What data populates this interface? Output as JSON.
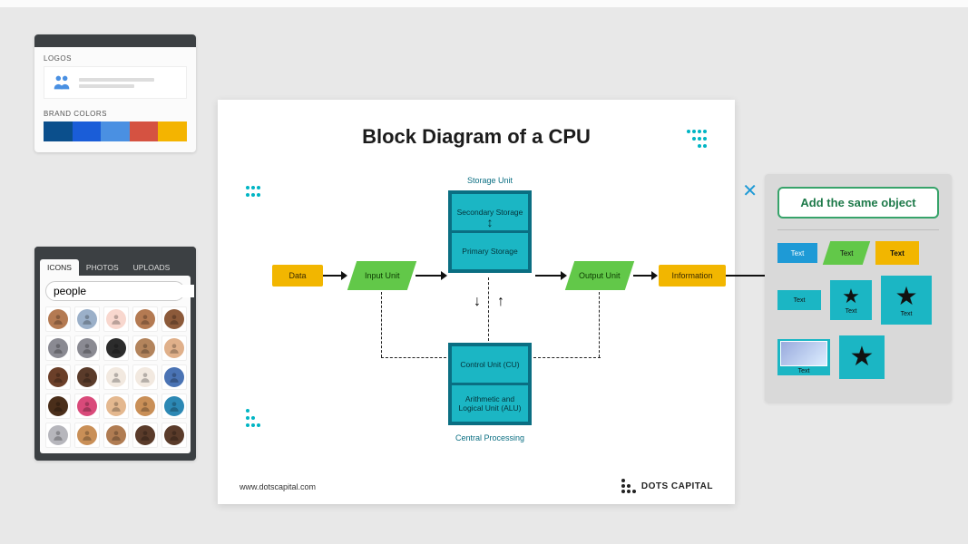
{
  "brand_panel": {
    "logos_label": "LOGOS",
    "brand_colors_label": "BRAND COLORS",
    "logo_icon_color": "#4a90e2",
    "swatches": [
      "#0b4f8c",
      "#1a5dd8",
      "#4a90e2",
      "#d55241",
      "#f4b400"
    ]
  },
  "icon_panel": {
    "tabs": {
      "icons": "ICONS",
      "photos": "PHOTOS",
      "uploads": "UPLOADS"
    },
    "active_tab": "ICONS",
    "search_value": "people",
    "avatar_bgs": [
      "#b47a52",
      "#9bb0c9",
      "#f8d7ce",
      "#b47a52",
      "#8c5a3a",
      "#8a8a92",
      "#8a8a92",
      "#2c2c2c",
      "#b3845c",
      "#e0b08a",
      "#6b3f29",
      "#5a3b2a",
      "#f2e9e0",
      "#f2e9e0",
      "#4a73b4",
      "#4a2e1a",
      "#d94a7a",
      "#e4b88f",
      "#c98f57",
      "#2c88b4",
      "#b6b6bc",
      "#c98f57",
      "#b07c52",
      "#5a3b2a",
      "#5a3b2a"
    ]
  },
  "slide": {
    "title": "Block Diagram of a CPU",
    "storage_label": "Storage Unit",
    "cpu_label": "Central Processing",
    "footer_url": "www.dotscapital.com",
    "footer_brand": "DOTS CAPITAL",
    "accent_color": "#00b5c4",
    "colors": {
      "yellow": "#f2b600",
      "green": "#62c849",
      "teal_fill": "#1bb6c4",
      "teal_border": "#0a6e82",
      "arrow": "#111111"
    },
    "blocks": {
      "data": "Data",
      "input": "Input Unit",
      "secondary": "Secondary Storage",
      "primary": "Primary Storage",
      "control": "Control Unit (CU)",
      "alu": "Arithmetic and Logical Unit (ALU)",
      "output": "Output Unit",
      "info": "Information"
    }
  },
  "object_panel": {
    "cta": "Add the same object",
    "items_text": "Text"
  }
}
